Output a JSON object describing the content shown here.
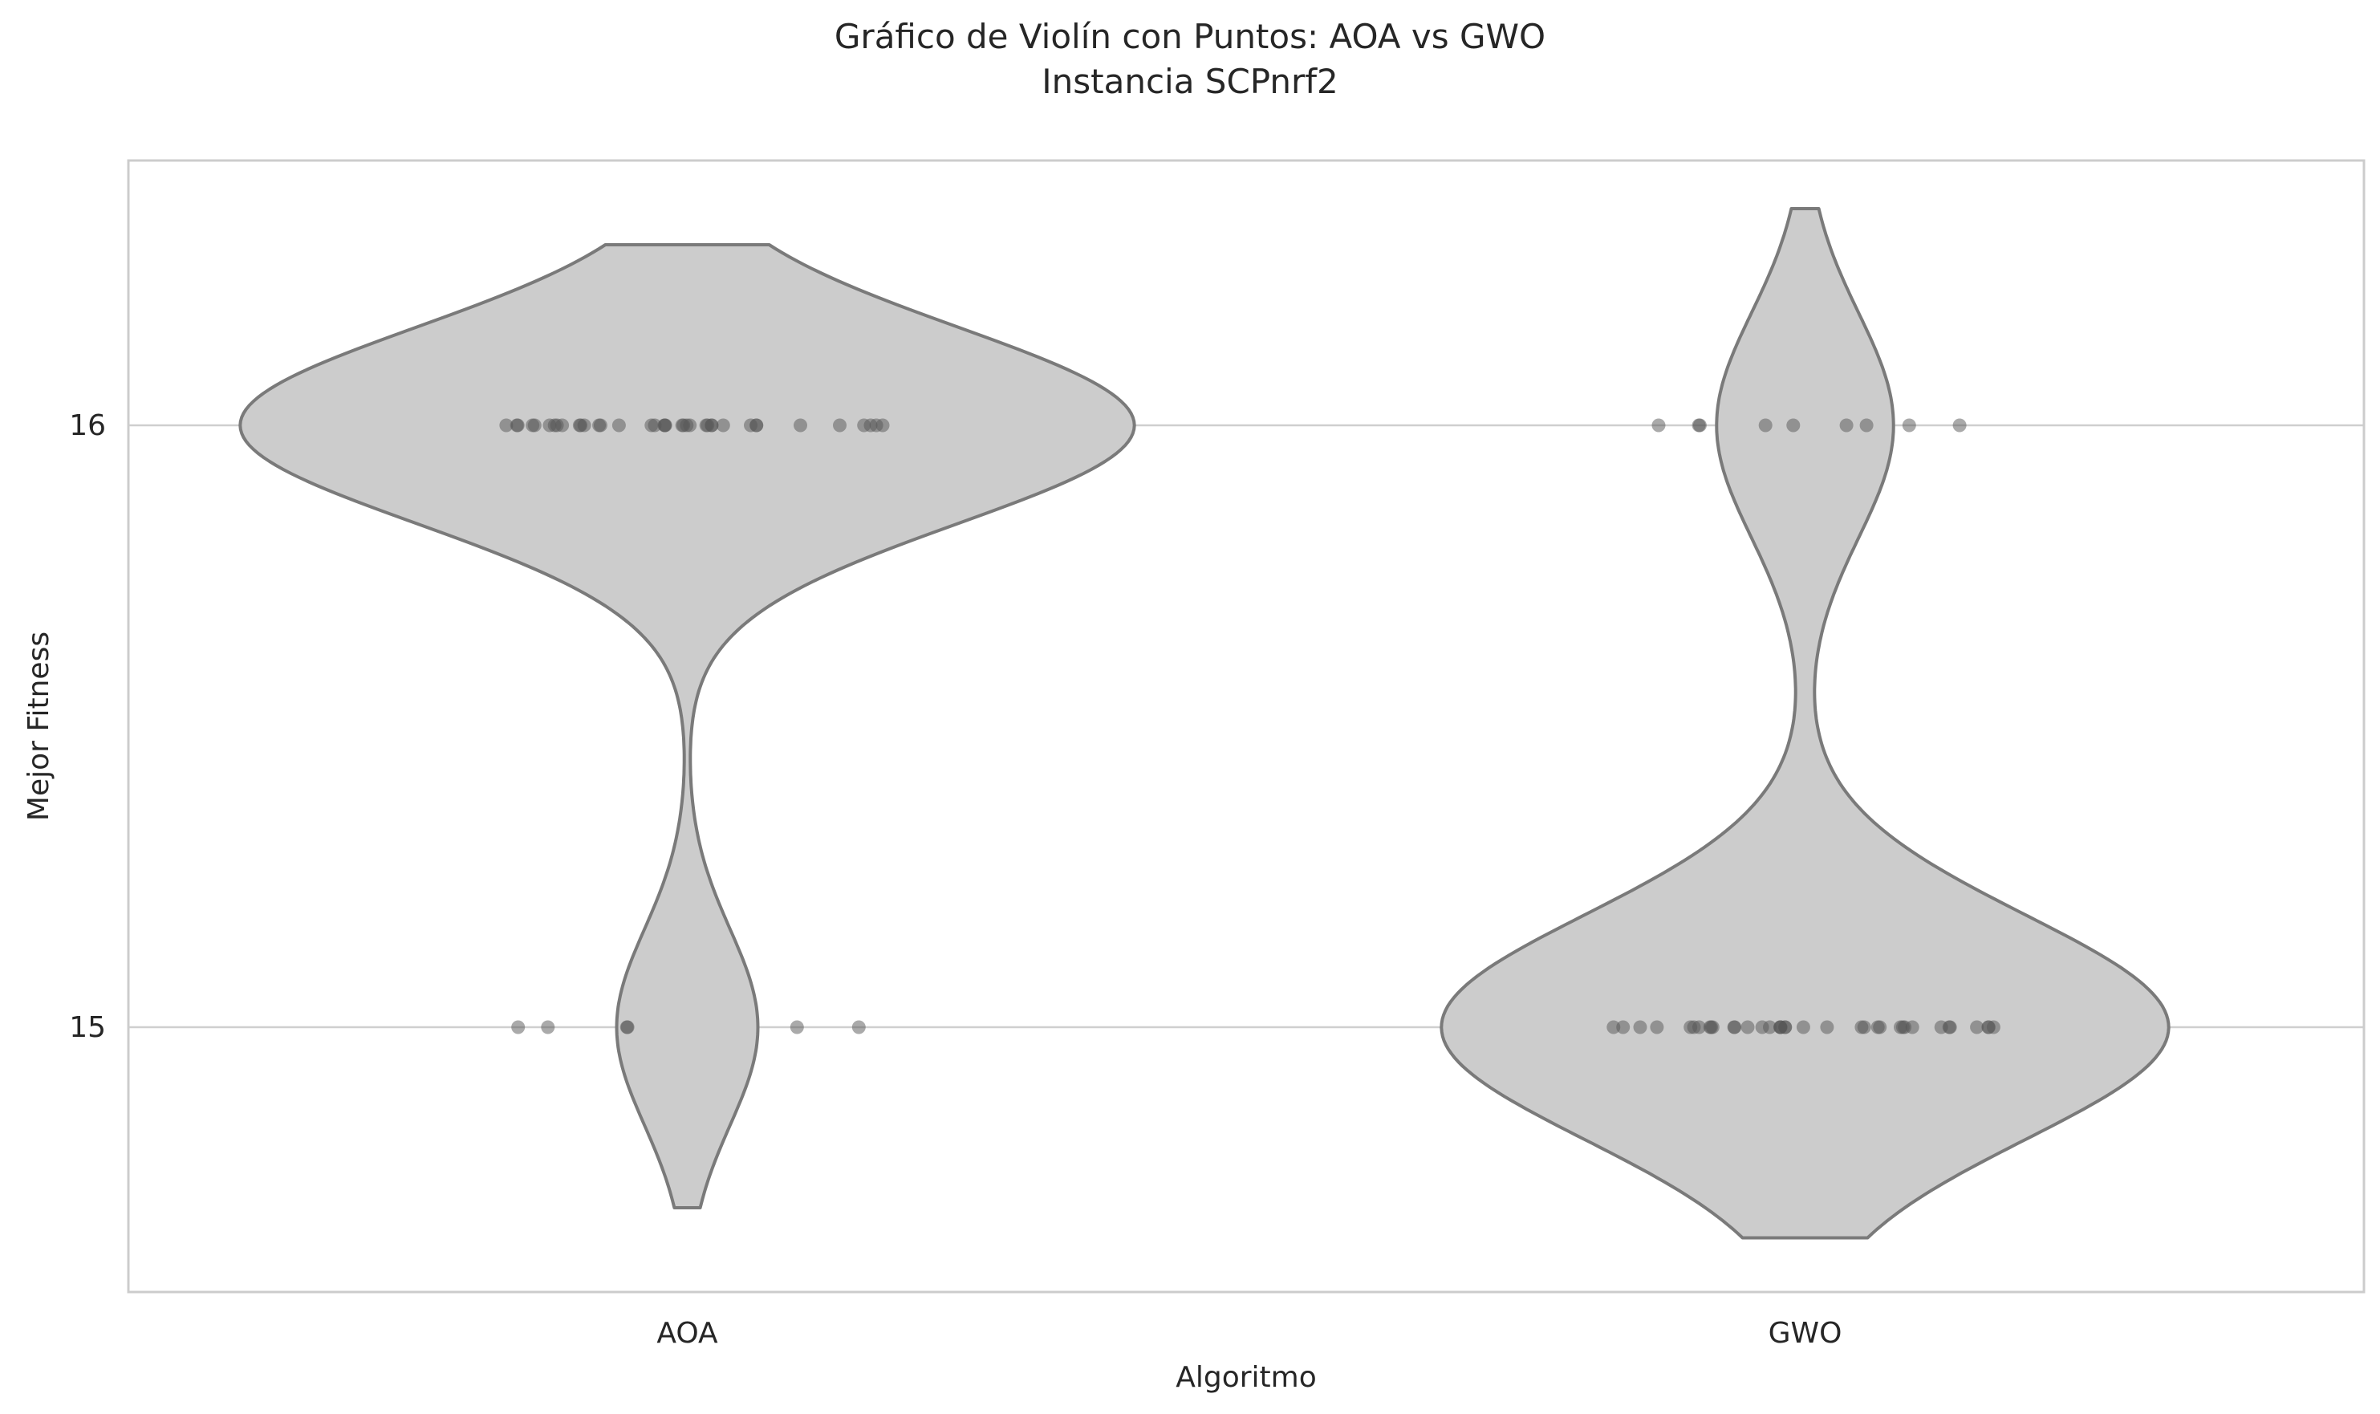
{
  "chart_data": {
    "type": "violin",
    "title": "Gráfico de Violín con Puntos: AOA vs GWO",
    "subtitle": "Instancia SCPnrf2",
    "xlabel": "Algoritmo",
    "ylabel": "Mejor Fitness",
    "categories": [
      "AOA",
      "GWO"
    ],
    "y_ticks": [
      15,
      16
    ],
    "ylim": [
      14.56,
      16.44
    ],
    "grid": "horizontal",
    "colors": {
      "violin_fill": "#cccccc",
      "violin_edge": "#7a7a7a",
      "points": "#555555",
      "grid": "#cfcfcf",
      "frame": "#cccccc"
    },
    "series": [
      {
        "category": "AOA",
        "violin_range": [
          14.7,
          16.3
        ],
        "values": [
          16,
          16,
          16,
          16,
          16,
          16,
          16,
          16,
          16,
          16,
          16,
          16,
          16,
          16,
          16,
          16,
          16,
          16,
          16,
          16,
          16,
          16,
          16,
          16,
          16,
          16,
          16,
          16,
          16,
          16,
          16,
          16,
          16,
          16,
          16,
          16,
          16,
          16,
          15,
          15,
          15,
          15,
          15,
          15
        ]
      },
      {
        "category": "GWO",
        "violin_range": [
          14.65,
          16.36
        ],
        "values": [
          16,
          16,
          16,
          16,
          16,
          16,
          16,
          16,
          16,
          15,
          15,
          15,
          15,
          15,
          15,
          15,
          15,
          15,
          15,
          15,
          15,
          15,
          15,
          15,
          15,
          15,
          15,
          15,
          15,
          15,
          15,
          15,
          15,
          15,
          15,
          15,
          15,
          15,
          15,
          15,
          15,
          15,
          15,
          15,
          15,
          15
        ]
      }
    ]
  }
}
